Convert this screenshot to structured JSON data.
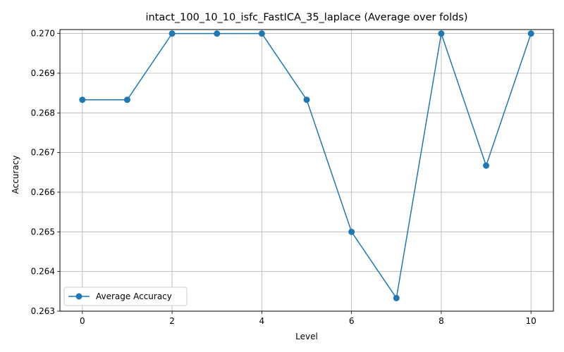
{
  "chart_data": {
    "type": "line",
    "title": "intact_100_10_10_isfc_FastICA_35_laplace (Average over folds)",
    "xlabel": "Level",
    "ylabel": "Accuracy",
    "xlim": [
      -0.5,
      10.5
    ],
    "ylim": [
      0.263,
      0.2701
    ],
    "xticks": [
      0,
      2,
      4,
      6,
      8,
      10
    ],
    "xtick_labels": [
      "0",
      "2",
      "4",
      "6",
      "8",
      "10"
    ],
    "yticks": [
      0.263,
      0.264,
      0.265,
      0.266,
      0.267,
      0.268,
      0.269,
      0.27
    ],
    "ytick_labels": [
      "0.263",
      "0.264",
      "0.265",
      "0.266",
      "0.267",
      "0.268",
      "0.269",
      "0.270"
    ],
    "grid": true,
    "legend_position": "lower-left",
    "series": [
      {
        "name": "Average Accuracy",
        "color": "#1f77b4",
        "marker": "circle",
        "x": [
          0,
          1,
          2,
          3,
          4,
          5,
          6,
          7,
          8,
          9,
          10
        ],
        "y": [
          0.26833,
          0.26833,
          0.27,
          0.27,
          0.27,
          0.26833,
          0.265,
          0.26333,
          0.27,
          0.26667,
          0.27
        ]
      }
    ]
  }
}
